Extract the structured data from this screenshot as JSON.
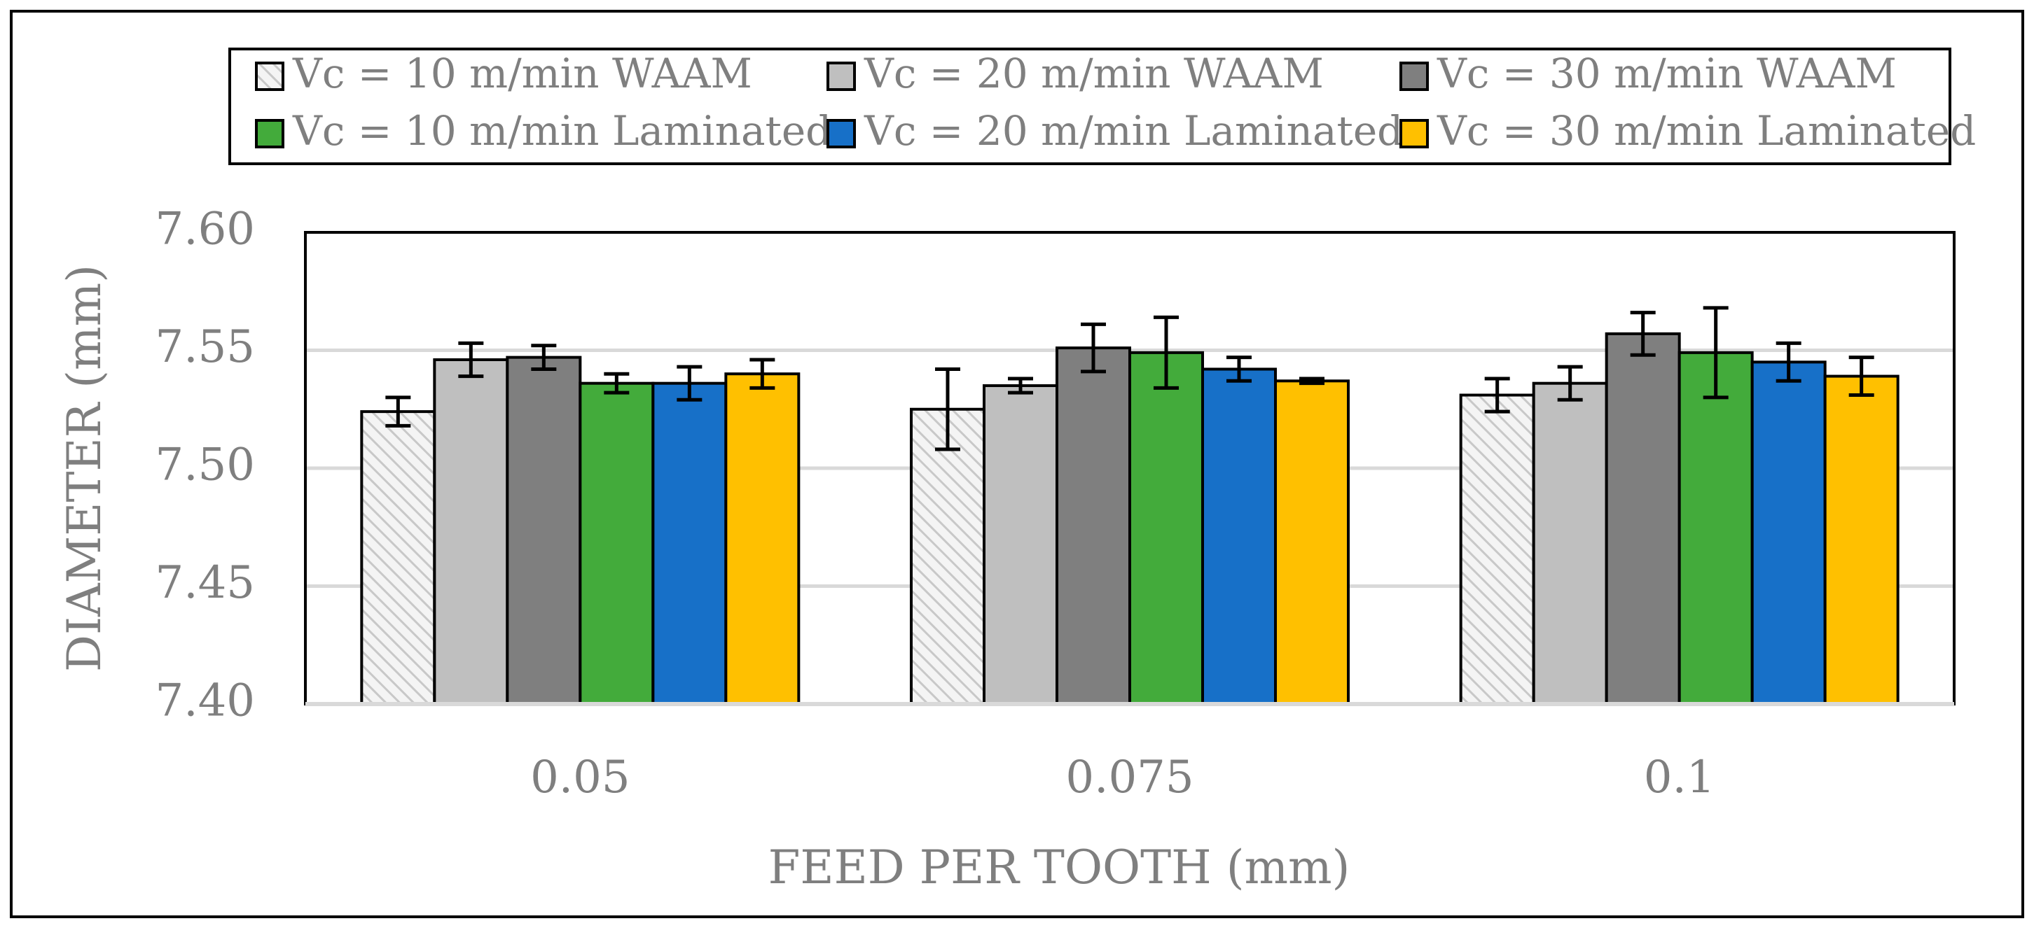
{
  "chart_data": {
    "type": "bar",
    "title": "",
    "xlabel": "FEED PER TOOTH (mm)",
    "ylabel": "DIAMETER (mm)",
    "ylim": [
      7.4,
      7.6
    ],
    "yticks": [
      "7.40",
      "7.45",
      "7.50",
      "7.55",
      "7.60"
    ],
    "ytick_values": [
      7.4,
      7.45,
      7.5,
      7.55,
      7.6
    ],
    "grid": "horizontal",
    "legend_position": "top",
    "categories": [
      "0.05",
      "0.075",
      "0.1"
    ],
    "series": [
      {
        "name": "Vc = 10 m/min WAAM",
        "color": "#e6e6e6",
        "pattern": "hatched",
        "values": [
          7.524,
          7.525,
          7.531
        ],
        "errors": [
          0.006,
          0.017,
          0.007
        ]
      },
      {
        "name": "Vc = 20 m/min WAAM",
        "color": "#bfbfbf",
        "pattern": "solid",
        "values": [
          7.546,
          7.535,
          7.536
        ],
        "errors": [
          0.007,
          0.003,
          0.007
        ]
      },
      {
        "name": "Vc = 30 m/min WAAM",
        "color": "#7f7f7f",
        "pattern": "solid",
        "values": [
          7.547,
          7.551,
          7.557
        ],
        "errors": [
          0.005,
          0.01,
          0.009
        ]
      },
      {
        "name": "Vc = 10 m/min Laminated",
        "color": "#43ab3b",
        "pattern": "solid",
        "values": [
          7.536,
          7.549,
          7.549
        ],
        "errors": [
          0.004,
          0.015,
          0.019
        ]
      },
      {
        "name": "Vc = 20 m/min Laminated",
        "color": "#1770c8",
        "pattern": "solid",
        "values": [
          7.536,
          7.542,
          7.545
        ],
        "errors": [
          0.007,
          0.005,
          0.008
        ]
      },
      {
        "name": "Vc = 30 m/min Laminated",
        "color": "#ffc000",
        "pattern": "solid",
        "values": [
          7.54,
          7.537,
          7.539
        ],
        "errors": [
          0.006,
          0.001,
          0.008
        ]
      }
    ]
  }
}
